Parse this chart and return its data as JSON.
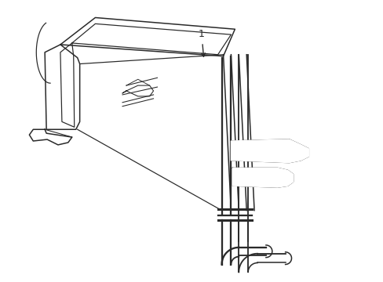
{
  "background_color": "#ffffff",
  "line_color": "#2a2a2a",
  "line_width": 1.1,
  "label_number": "1"
}
